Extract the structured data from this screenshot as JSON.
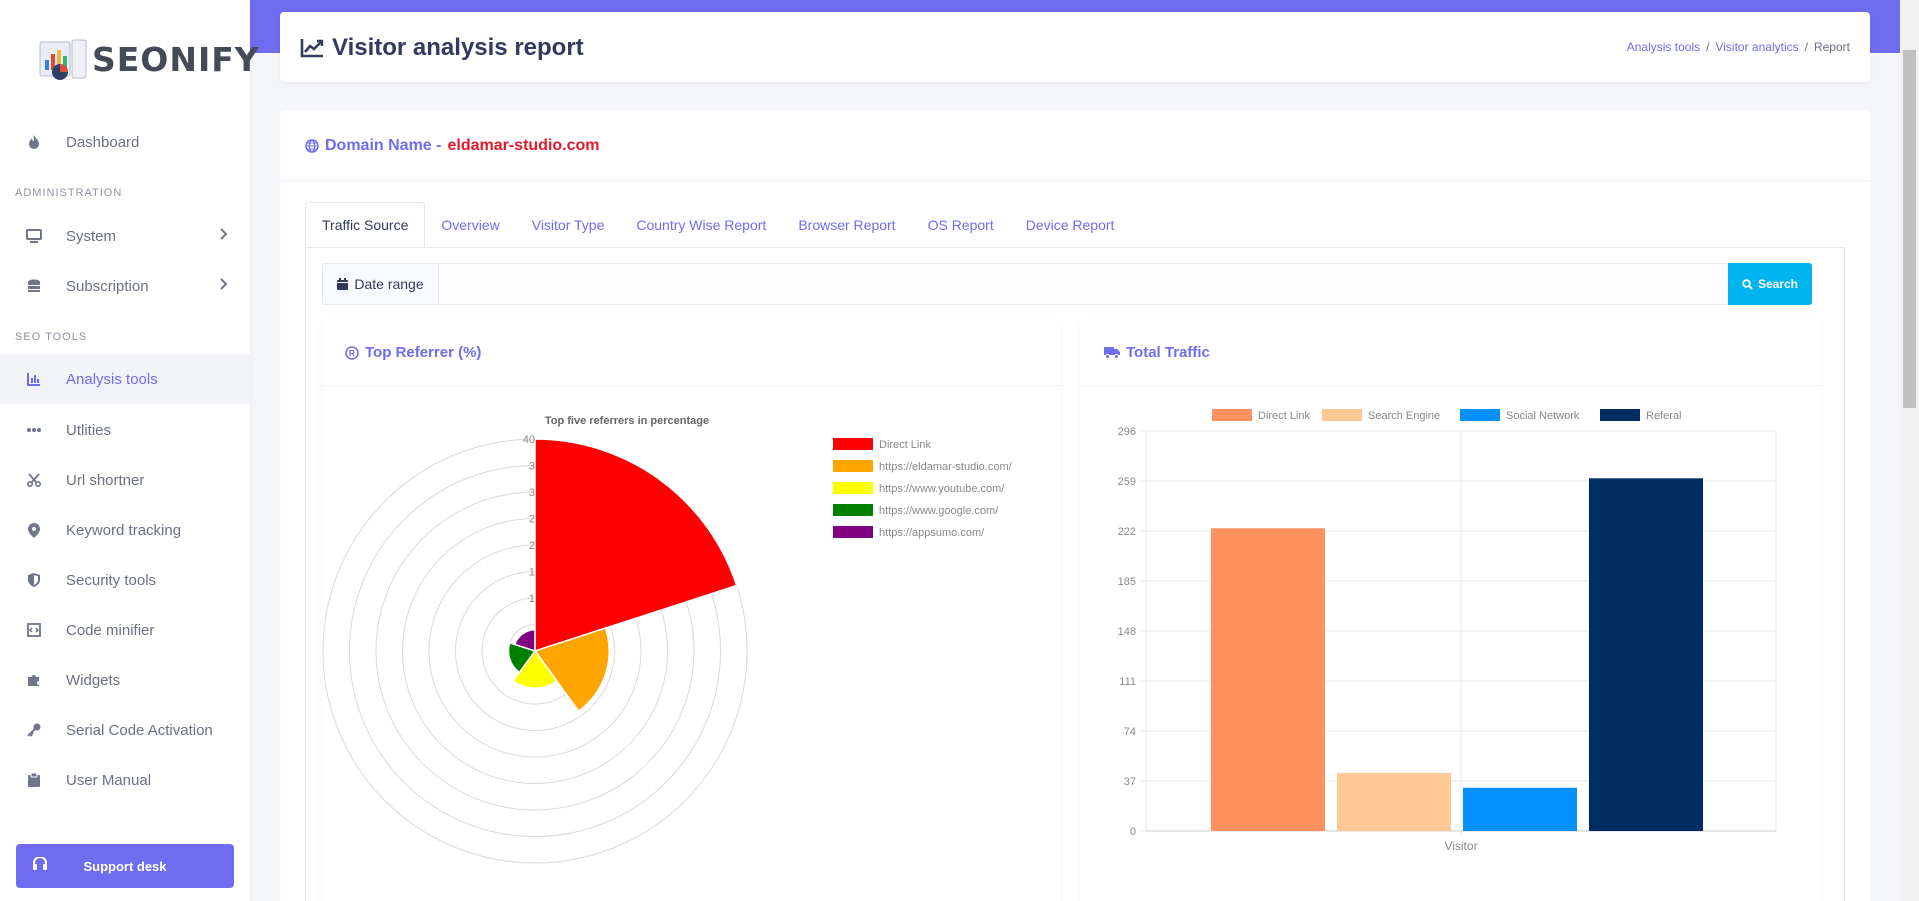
{
  "brand": {
    "name": "SEONIFY"
  },
  "sidebar": {
    "items": [
      {
        "label": "Dashboard",
        "icon": "fire-icon"
      },
      {
        "label": "System",
        "icon": "monitor-icon"
      },
      {
        "label": "Subscription",
        "icon": "coins-icon"
      },
      {
        "label": "Analysis tools",
        "icon": "chart-bar-icon"
      },
      {
        "label": "Utlities",
        "icon": "dots-icon"
      },
      {
        "label": "Url shortner",
        "icon": "scissors-icon"
      },
      {
        "label": "Keyword tracking",
        "icon": "map-pin-icon"
      },
      {
        "label": "Security tools",
        "icon": "shield-icon"
      },
      {
        "label": "Code minifier",
        "icon": "file-code-icon"
      },
      {
        "label": "Widgets",
        "icon": "puzzle-icon"
      },
      {
        "label": "Serial Code Activation",
        "icon": "key-icon"
      },
      {
        "label": "User Manual",
        "icon": "clipboard-icon"
      }
    ],
    "section_admin": "ADMINISTRATION",
    "section_seo": "SEO TOOLS",
    "support_label": "Support desk",
    "active_item": "Analysis tools"
  },
  "header": {
    "title": "Visitor analysis report",
    "breadcrumb": [
      "Analysis tools",
      "Visitor analytics",
      "Report"
    ]
  },
  "main": {
    "domain_label": "Domain Name -",
    "domain_value": "eldamar-studio.com",
    "tabs": [
      "Traffic Source",
      "Overview",
      "Visitor Type",
      "Country Wise Report",
      "Browser Report",
      "OS Report",
      "Device Report"
    ],
    "active_tab": "Traffic Source",
    "date_range_label": "Date range",
    "date_range_value": "",
    "search_label": "Search",
    "panel_left_title": "Top Referrer (%)",
    "panel_right_title": "Total Traffic"
  },
  "chart_data": [
    {
      "type": "polar-area",
      "title": "Top five referrers in percentage",
      "categories": [
        "Direct Link",
        "https://eldamar-studio.com/",
        "https://www.youtube.com/",
        "https://www.google.com/",
        "https://appsumo.com/"
      ],
      "values": [
        40,
        14,
        7,
        5,
        4
      ],
      "colors": [
        "#ff0000",
        "#ffa500",
        "#ffff00",
        "#008000",
        "#800080"
      ],
      "r_max": 40,
      "ticks": [
        "40",
        "3",
        "3",
        "2",
        "2",
        "1",
        "1"
      ],
      "legend": "right"
    },
    {
      "type": "bar",
      "categories": [
        "Visitor"
      ],
      "series": [
        {
          "name": "Direct Link",
          "values": [
            224
          ],
          "color": "#ff9060"
        },
        {
          "name": "Search Engine",
          "values": [
            43
          ],
          "color": "#ffc894"
        },
        {
          "name": "Social Network",
          "values": [
            32
          ],
          "color": "#068ffe"
        },
        {
          "name": "Referal",
          "values": [
            261
          ],
          "color": "#002e63"
        }
      ],
      "yticks": [
        0,
        37,
        74,
        111,
        148,
        185,
        222,
        259,
        296
      ],
      "ylim": [
        0,
        296
      ],
      "legend": "top"
    }
  ]
}
